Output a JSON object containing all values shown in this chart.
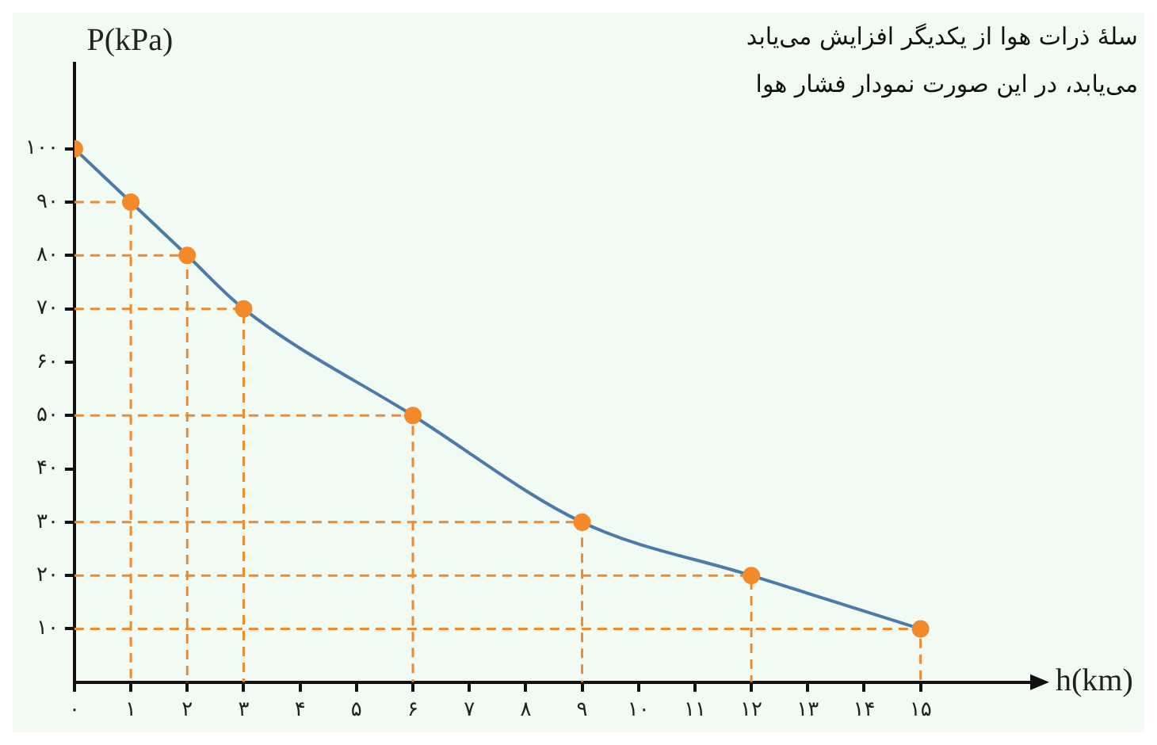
{
  "chart_data": {
    "type": "line",
    "xlabel": "h(km)",
    "ylabel": "P(kPa)",
    "annotations": [
      "سلهٔ ذرات هوا از یکدیگر افزایش می‌یابد",
      "می‌یابد، در این صورت نمودار فشار هوا"
    ],
    "x": [
      0,
      1,
      2,
      3,
      6,
      9,
      12,
      15
    ],
    "series": [
      {
        "type": "scatter",
        "color": "#f28a2c",
        "marker": "circle",
        "values": [
          100,
          90,
          80,
          70,
          50,
          30,
          20,
          10
        ]
      },
      {
        "color": "#4a7bab",
        "marker": "none",
        "values": [
          100,
          90,
          80,
          70,
          50,
          30,
          20,
          10
        ]
      },
      {
        "x": [
          0,
          1,
          1
        ],
        "values": [
          90,
          90,
          0
        ],
        "color": "#f28a2c",
        "line_style": "dashed",
        "marker": "none"
      },
      {
        "x": [
          0,
          2,
          2
        ],
        "values": [
          80,
          80,
          0
        ],
        "color": "#f28a2c",
        "line_style": "dashed",
        "marker": "none"
      },
      {
        "x": [
          0,
          3,
          3
        ],
        "values": [
          70,
          70,
          0
        ],
        "color": "#f28a2c",
        "line_style": "dashed",
        "marker": "none"
      },
      {
        "x": [
          0,
          6,
          6
        ],
        "values": [
          50,
          50,
          0
        ],
        "color": "#f28a2c",
        "line_style": "dashed",
        "marker": "none"
      },
      {
        "x": [
          0,
          9,
          9
        ],
        "values": [
          30,
          30,
          0
        ],
        "color": "#f28a2c",
        "line_style": "dashed",
        "marker": "none"
      },
      {
        "x": [
          0,
          12,
          12
        ],
        "values": [
          20,
          20,
          0
        ],
        "color": "#f28a2c",
        "line_style": "dashed",
        "marker": "none"
      },
      {
        "x": [
          0,
          15,
          15
        ],
        "values": [
          10,
          10,
          0
        ],
        "color": "#f28a2c",
        "line_style": "dashed",
        "marker": "none"
      }
    ],
    "line_style": "solid",
    "grid": false,
    "legend": false,
    "xlim": [
      0,
      17
    ],
    "ylim": [
      0,
      116
    ],
    "xticks": [
      {
        "value": 0,
        "label": "۰"
      },
      {
        "value": 1,
        "label": "۱"
      },
      {
        "value": 2,
        "label": "۲"
      },
      {
        "value": 3,
        "label": "۳"
      },
      {
        "value": 4,
        "label": "۴"
      },
      {
        "value": 5,
        "label": "۵"
      },
      {
        "value": 6,
        "label": "۶"
      },
      {
        "value": 7,
        "label": "۷"
      },
      {
        "value": 8,
        "label": "۸"
      },
      {
        "value": 9,
        "label": "۹"
      },
      {
        "value": 10,
        "label": "۱۰"
      },
      {
        "value": 11,
        "label": "۱۱"
      },
      {
        "value": 12,
        "label": "۱۲"
      },
      {
        "value": 13,
        "label": "۱۳"
      },
      {
        "value": 14,
        "label": "۱۴"
      },
      {
        "value": 15,
        "label": "۱۵"
      }
    ],
    "yticks": [
      {
        "value": 10,
        "label": "۱۰"
      },
      {
        "value": 20,
        "label": "۲۰"
      },
      {
        "value": 30,
        "label": "۳۰"
      },
      {
        "value": 40,
        "label": "۴۰"
      },
      {
        "value": 50,
        "label": "۵۰"
      },
      {
        "value": 60,
        "label": "۶۰"
      },
      {
        "value": 70,
        "label": "۷۰"
      },
      {
        "value": 80,
        "label": "۸۰"
      },
      {
        "value": 90,
        "label": "۹۰"
      },
      {
        "value": 100,
        "label": "۱۰۰"
      }
    ]
  }
}
